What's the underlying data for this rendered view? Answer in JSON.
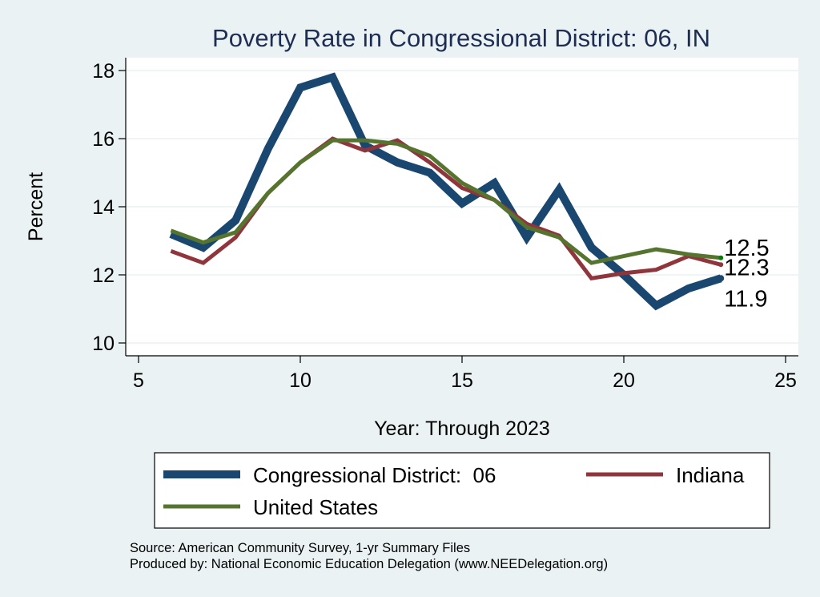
{
  "chart_data": {
    "type": "line",
    "title": "Poverty Rate in Congressional District:  06, IN",
    "xlabel": "Year: Through 2023",
    "ylabel": "Percent",
    "xlim": [
      5,
      25
    ],
    "ylim": [
      10,
      18
    ],
    "xticks": [
      5,
      10,
      15,
      20,
      25
    ],
    "yticks": [
      10,
      12,
      14,
      16,
      18
    ],
    "grid": true,
    "legend_position": "bottom",
    "x": [
      6,
      7,
      8,
      9,
      10,
      11,
      12,
      13,
      14,
      15,
      16,
      17,
      18,
      19,
      20,
      21,
      22,
      23
    ],
    "series": [
      {
        "name": "Congressional District:  06",
        "color": "#1A476F",
        "weight": "thick",
        "values": [
          13.2,
          12.8,
          13.6,
          15.7,
          17.5,
          17.8,
          15.8,
          15.3,
          15.0,
          14.1,
          14.7,
          13.1,
          14.5,
          12.8,
          12.0,
          11.1,
          11.6,
          11.9
        ],
        "end_label": "11.9"
      },
      {
        "name": "Indiana",
        "color": "#90353B",
        "weight": "medium",
        "values": [
          12.7,
          12.35,
          13.1,
          14.4,
          15.3,
          16.0,
          15.65,
          15.95,
          15.3,
          14.55,
          14.2,
          13.5,
          13.15,
          11.9,
          12.05,
          12.15,
          12.55,
          12.3
        ],
        "end_label": "12.3"
      },
      {
        "name": "United States",
        "color": "#55752F",
        "weight": "medium",
        "values": [
          13.3,
          12.95,
          13.25,
          14.4,
          15.3,
          15.95,
          15.95,
          15.85,
          15.5,
          14.7,
          14.2,
          13.4,
          13.1,
          12.35,
          12.55,
          12.75,
          12.6,
          12.5
        ],
        "end_label": "12.5"
      }
    ],
    "source_lines": [
      "Source: American Community Survey, 1-yr Summary Files",
      "Produced by: National Economic Education Delegation (www.NEEDelegation.org)"
    ]
  }
}
